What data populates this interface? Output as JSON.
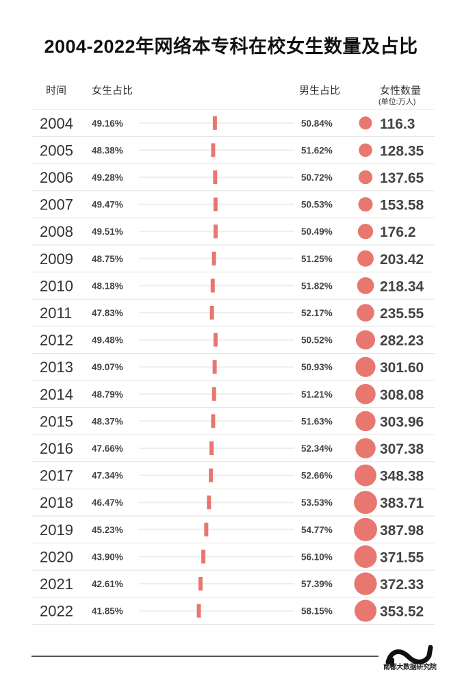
{
  "title": "2004-2022年网络本专科在校女生数量及占比",
  "headers": {
    "time": "时间",
    "female_share": "女生占比",
    "male_share": "男生占比",
    "female_count": "女性数量",
    "unit": "(单位:万人)"
  },
  "colors": {
    "accent": "#e8776f",
    "track": "#eeeeee",
    "row_line": "#e3e3e3"
  },
  "chart_data": {
    "type": "table",
    "columns": [
      "时间",
      "女生占比",
      "男生占比",
      "女性数量"
    ],
    "rows": [
      {
        "year": "2004",
        "female_pct": "49.16%",
        "female": 49.16,
        "male_pct": "50.84%",
        "male": 50.84,
        "count": "116.3",
        "count_value": 116.3
      },
      {
        "year": "2005",
        "female_pct": "48.38%",
        "female": 48.38,
        "male_pct": "51.62%",
        "male": 51.62,
        "count": "128.35",
        "count_value": 128.35
      },
      {
        "year": "2006",
        "female_pct": "49.28%",
        "female": 49.28,
        "male_pct": "50.72%",
        "male": 50.72,
        "count": "137.65",
        "count_value": 137.65
      },
      {
        "year": "2007",
        "female_pct": "49.47%",
        "female": 49.47,
        "male_pct": "50.53%",
        "male": 50.53,
        "count": "153.58",
        "count_value": 153.58
      },
      {
        "year": "2008",
        "female_pct": "49.51%",
        "female": 49.51,
        "male_pct": "50.49%",
        "male": 50.49,
        "count": "176.2",
        "count_value": 176.2
      },
      {
        "year": "2009",
        "female_pct": "48.75%",
        "female": 48.75,
        "male_pct": "51.25%",
        "male": 51.25,
        "count": "203.42",
        "count_value": 203.42
      },
      {
        "year": "2010",
        "female_pct": "48.18%",
        "female": 48.18,
        "male_pct": "51.82%",
        "male": 51.82,
        "count": "218.34",
        "count_value": 218.34
      },
      {
        "year": "2011",
        "female_pct": "47.83%",
        "female": 47.83,
        "male_pct": "52.17%",
        "male": 52.17,
        "count": "235.55",
        "count_value": 235.55
      },
      {
        "year": "2012",
        "female_pct": "49.48%",
        "female": 49.48,
        "male_pct": "50.52%",
        "male": 50.52,
        "count": "282.23",
        "count_value": 282.23
      },
      {
        "year": "2013",
        "female_pct": "49.07%",
        "female": 49.07,
        "male_pct": "50.93%",
        "male": 50.93,
        "count": "301.60",
        "count_value": 301.6
      },
      {
        "year": "2014",
        "female_pct": "48.79%",
        "female": 48.79,
        "male_pct": "51.21%",
        "male": 51.21,
        "count": "308.08",
        "count_value": 308.08
      },
      {
        "year": "2015",
        "female_pct": "48.37%",
        "female": 48.37,
        "male_pct": "51.63%",
        "male": 51.63,
        "count": "303.96",
        "count_value": 303.96
      },
      {
        "year": "2016",
        "female_pct": "47.66%",
        "female": 47.66,
        "male_pct": "52.34%",
        "male": 52.34,
        "count": "307.38",
        "count_value": 307.38
      },
      {
        "year": "2017",
        "female_pct": "47.34%",
        "female": 47.34,
        "male_pct": "52.66%",
        "male": 52.66,
        "count": "348.38",
        "count_value": 348.38
      },
      {
        "year": "2018",
        "female_pct": "46.47%",
        "female": 46.47,
        "male_pct": "53.53%",
        "male": 53.53,
        "count": "383.71",
        "count_value": 383.71
      },
      {
        "year": "2019",
        "female_pct": "45.23%",
        "female": 45.23,
        "male_pct": "54.77%",
        "male": 54.77,
        "count": "387.98",
        "count_value": 387.98
      },
      {
        "year": "2020",
        "female_pct": "43.90%",
        "female": 43.9,
        "male_pct": "56.10%",
        "male": 56.1,
        "count": "371.55",
        "count_value": 371.55
      },
      {
        "year": "2021",
        "female_pct": "42.61%",
        "female": 42.61,
        "male_pct": "57.39%",
        "male": 57.39,
        "count": "372.33",
        "count_value": 372.33
      },
      {
        "year": "2022",
        "female_pct": "41.85%",
        "female": 41.85,
        "male_pct": "58.15%",
        "male": 58.15,
        "count": "353.52",
        "count_value": 353.52
      }
    ]
  },
  "footer": {
    "brand": "南都大数据研究院"
  }
}
